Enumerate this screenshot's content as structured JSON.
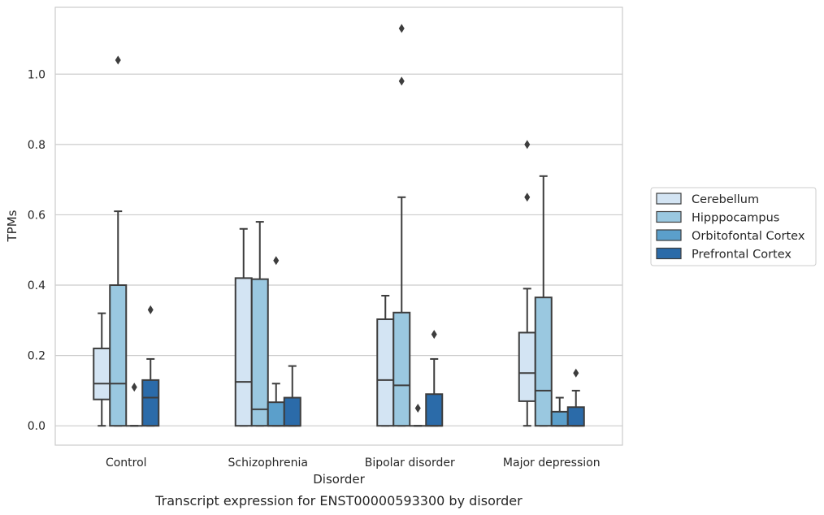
{
  "chart_data": {
    "type": "box",
    "xlabel": "Disorder",
    "ylabel": "TPMs",
    "caption": "Transcript expression for ENST00000593300 by disorder",
    "ylim": [
      -0.055,
      1.19
    ],
    "yticks": [
      "0.0",
      "0.2",
      "0.4",
      "0.6",
      "0.8",
      "1.0"
    ],
    "grid": true,
    "legend_position": "right",
    "categories": [
      "Control",
      "Schizophrenia",
      "Bipolar disorder",
      "Major depression"
    ],
    "series": [
      {
        "name": "Cerebellum",
        "color": "#d3e4f3",
        "boxes": [
          {
            "whisker_low": 0.0,
            "q1": 0.075,
            "median": 0.12,
            "q3": 0.22,
            "whisker_high": 0.32,
            "outliers": []
          },
          {
            "whisker_low": 0.0,
            "q1": 0.0,
            "median": 0.125,
            "q3": 0.42,
            "whisker_high": 0.56,
            "outliers": []
          },
          {
            "whisker_low": 0.0,
            "q1": 0.0,
            "median": 0.13,
            "q3": 0.303,
            "whisker_high": 0.37,
            "outliers": []
          },
          {
            "whisker_low": 0.0,
            "q1": 0.07,
            "median": 0.15,
            "q3": 0.265,
            "whisker_high": 0.39,
            "outliers": [
              0.65,
              0.8
            ]
          }
        ]
      },
      {
        "name": "Hipppocampus",
        "color": "#9ac8e0",
        "boxes": [
          {
            "whisker_low": 0.0,
            "q1": 0.0,
            "median": 0.12,
            "q3": 0.4,
            "whisker_high": 0.61,
            "outliers": [
              1.04
            ]
          },
          {
            "whisker_low": 0.0,
            "q1": 0.0,
            "median": 0.047,
            "q3": 0.417,
            "whisker_high": 0.58,
            "outliers": []
          },
          {
            "whisker_low": 0.0,
            "q1": 0.0,
            "median": 0.115,
            "q3": 0.322,
            "whisker_high": 0.65,
            "outliers": [
              0.98,
              1.13
            ]
          },
          {
            "whisker_low": 0.0,
            "q1": 0.0,
            "median": 0.1,
            "q3": 0.365,
            "whisker_high": 0.71,
            "outliers": []
          }
        ]
      },
      {
        "name": "Orbitofontal Cortex",
        "color": "#5b9fcb",
        "boxes": [
          {
            "whisker_low": 0.0,
            "q1": 0.0,
            "median": 0.0,
            "q3": 0.0,
            "whisker_high": 0.0,
            "outliers": [
              0.11
            ]
          },
          {
            "whisker_low": 0.0,
            "q1": 0.0,
            "median": 0.0,
            "q3": 0.067,
            "whisker_high": 0.12,
            "outliers": [
              0.47
            ]
          },
          {
            "whisker_low": 0.0,
            "q1": 0.0,
            "median": 0.0,
            "q3": 0.0,
            "whisker_high": 0.0,
            "outliers": [
              0.05
            ]
          },
          {
            "whisker_low": 0.0,
            "q1": 0.0,
            "median": 0.0,
            "q3": 0.04,
            "whisker_high": 0.08,
            "outliers": []
          }
        ]
      },
      {
        "name": "Prefrontal Cortex",
        "color": "#2b6ba9",
        "boxes": [
          {
            "whisker_low": 0.0,
            "q1": 0.0,
            "median": 0.08,
            "q3": 0.13,
            "whisker_high": 0.19,
            "outliers": [
              0.33
            ]
          },
          {
            "whisker_low": 0.0,
            "q1": 0.0,
            "median": 0.0,
            "q3": 0.08,
            "whisker_high": 0.17,
            "outliers": []
          },
          {
            "whisker_low": 0.0,
            "q1": 0.0,
            "median": 0.0,
            "q3": 0.09,
            "whisker_high": 0.19,
            "outliers": [
              0.26
            ]
          },
          {
            "whisker_low": 0.0,
            "q1": 0.0,
            "median": 0.0,
            "q3": 0.053,
            "whisker_high": 0.1,
            "outliers": [
              0.15
            ]
          }
        ]
      }
    ]
  }
}
